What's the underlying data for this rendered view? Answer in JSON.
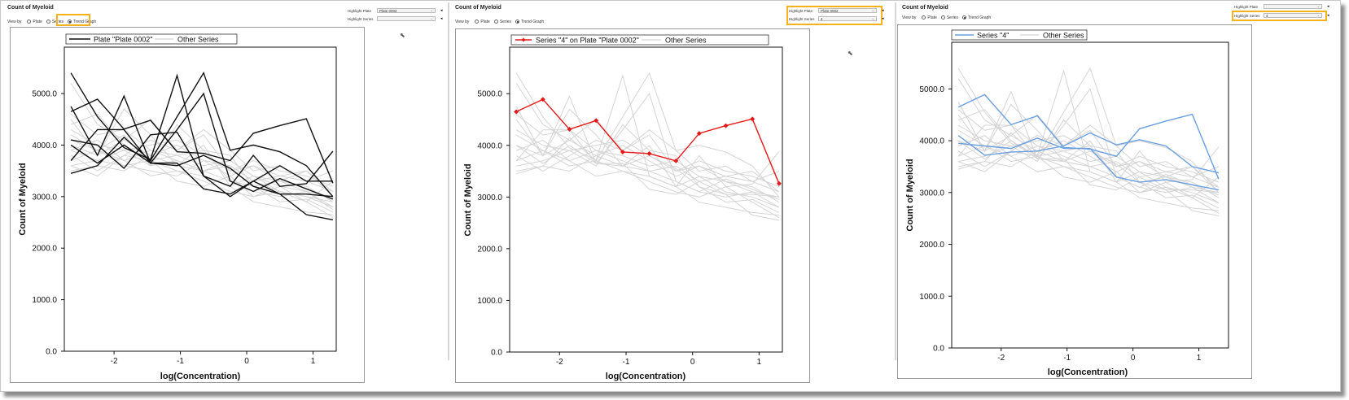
{
  "panels": [
    {
      "title": "Count of Myeloid",
      "view_by": {
        "label": "View by",
        "options": [
          "Plate",
          "Series",
          "Trend Graph"
        ],
        "selected": "Trend Graph"
      },
      "highlight_plate": {
        "label": "Highlight Plate",
        "value": "Plate 0002"
      },
      "highlight_series": {
        "label": "Highlight Series",
        "value": ""
      },
      "chart": {
        "legend_main": "Plate \"Plate 0002\"",
        "legend_other": "Other Series",
        "ylabel": "Count of Myeloid",
        "xlabel": "log(Concentration)",
        "yticks": [
          "0.0",
          "1000.0",
          "2000.0",
          "3000.0",
          "4000.0",
          "5000.0"
        ],
        "xticks": [
          "-2",
          "-1",
          "0",
          "1"
        ]
      }
    },
    {
      "title": "Count of Myeloid",
      "view_by": {
        "label": "View by",
        "options": [
          "Plate",
          "Series",
          "Trend Graph"
        ],
        "selected": "Trend Graph"
      },
      "highlight_plate": {
        "label": "Highlight Plate",
        "value": "Plate 0002"
      },
      "highlight_series": {
        "label": "Highlight Series",
        "value": "4"
      },
      "chart": {
        "legend_main": "Series \"4\" on Plate \"Plate 0002\"",
        "legend_other": "Other Series",
        "ylabel": "Count of Myeloid",
        "xlabel": "log(Concentration)",
        "yticks": [
          "0.0",
          "1000.0",
          "2000.0",
          "3000.0",
          "4000.0",
          "5000.0"
        ],
        "xticks": [
          "-2",
          "-1",
          "0",
          "1"
        ]
      }
    },
    {
      "title": "Count of Myeloid",
      "view_by": {
        "label": "View by",
        "options": [
          "Plate",
          "Series",
          "Trend Graph"
        ],
        "selected": "Trend Graph"
      },
      "highlight_plate": {
        "label": "Highlight Plate",
        "value": ""
      },
      "highlight_series": {
        "label": "Highlight Series",
        "value": "4"
      },
      "chart": {
        "legend_main": "Series \"4\"",
        "legend_other": "Other Series",
        "ylabel": "Count of Myeloid",
        "xlabel": "log(Concentration)",
        "yticks": [
          "0.0",
          "1000.0",
          "2000.0",
          "3000.0",
          "4000.0",
          "5000.0"
        ],
        "xticks": [
          "-2",
          "-1",
          "0",
          "1"
        ]
      }
    }
  ],
  "colors": {
    "highlight_plate": "#111111",
    "highlight_series": "#e41a1a",
    "highlight_series_all": "#6a9fe0",
    "other_series": "#d4d4d4",
    "focus_box": "#f5b21b"
  },
  "chart_data": [
    {
      "type": "line",
      "title": "",
      "xlabel": "log(Concentration)",
      "ylabel": "Count of Myeloid",
      "xlim": [
        -2.75,
        1.35
      ],
      "ylim": [
        0,
        5900
      ],
      "x": [
        -2.65,
        -2.25,
        -1.85,
        -1.45,
        -1.05,
        -0.65,
        -0.25,
        0.1,
        0.5,
        0.9,
        1.3
      ],
      "highlight_series": [
        {
          "name": "Plate \"Plate 0002\"",
          "values": [
            4650,
            4890,
            4310,
            4480,
            3870,
            3840,
            3700,
            4230,
            4380,
            4510,
            3260
          ]
        },
        {
          "name": "Plate \"Plate 0002\"",
          "values": [
            5400,
            4550,
            3950,
            3720,
            5350,
            3400,
            3200,
            3800,
            3200,
            3250,
            3880
          ]
        },
        {
          "name": "Plate \"Plate 0002\"",
          "values": [
            3450,
            3600,
            4150,
            3700,
            4550,
            5400,
            3900,
            4000,
            3870,
            3600,
            3000
          ]
        },
        {
          "name": "Plate \"Plate 0002\"",
          "values": [
            4000,
            3650,
            4000,
            3650,
            3650,
            3150,
            3050,
            3300,
            3050,
            2650,
            2550
          ]
        },
        {
          "name": "Plate \"Plate 0002\"",
          "values": [
            4750,
            3800,
            4950,
            3650,
            4300,
            5000,
            3300,
            3100,
            3350,
            3150,
            2950
          ]
        },
        {
          "name": "Plate \"Plate 0002\"",
          "values": [
            3700,
            4300,
            4300,
            3650,
            3600,
            3800,
            3550,
            3200,
            3050,
            3050,
            3000
          ]
        },
        {
          "name": "Plate \"Plate 0002\"",
          "values": [
            4100,
            4000,
            3550,
            4200,
            4250,
            3400,
            3000,
            3300,
            3600,
            3300,
            3300
          ]
        }
      ],
      "other_series": [
        [
          4500,
          3800,
          4700,
          4200,
          3600,
          4000,
          3200,
          3400,
          3100,
          3000,
          2800
        ],
        [
          3900,
          4100,
          3700,
          3900,
          3700,
          3500,
          3600,
          3300,
          3400,
          3500,
          3100
        ],
        [
          5200,
          4400,
          4100,
          3800,
          4000,
          3700,
          3400,
          3600,
          3300,
          3100,
          3000
        ],
        [
          3600,
          3700,
          3900,
          3600,
          4400,
          3900,
          3800,
          3200,
          2900,
          2950,
          2700
        ],
        [
          4200,
          3900,
          3600,
          3700,
          3500,
          3300,
          3100,
          3000,
          3200,
          2900,
          2600
        ],
        [
          3800,
          3500,
          3800,
          4100,
          3900,
          4200,
          3500,
          3700,
          3500,
          3400,
          3200
        ],
        [
          4600,
          4200,
          4300,
          3900,
          3800,
          3600,
          3700,
          3400,
          3300,
          3200,
          2900
        ],
        [
          3500,
          3600,
          3500,
          3800,
          3600,
          3500,
          3300,
          3100,
          3000,
          3100,
          2800
        ],
        [
          4000,
          3800,
          4100,
          4500,
          3900,
          4300,
          3900,
          3500,
          3600,
          3300,
          3100
        ],
        [
          3700,
          3900,
          3700,
          3400,
          3500,
          3400,
          3200,
          2900,
          2800,
          2700,
          2650
        ],
        [
          4300,
          4000,
          3900,
          4000,
          4100,
          3800,
          3500,
          3600,
          3400,
          3300,
          3500
        ],
        [
          3900,
          3700,
          3600,
          3500,
          3400,
          3700,
          3600,
          3300,
          3100,
          3000,
          2900
        ],
        [
          4400,
          4600,
          4000,
          3700,
          3800,
          3900,
          3300,
          3200,
          3300,
          3500,
          3000
        ],
        [
          3600,
          3400,
          3800,
          3700,
          3300,
          3200,
          3400,
          3000,
          3100,
          2900,
          3300
        ],
        [
          4100,
          3900,
          4200,
          3600,
          3700,
          3500,
          3700,
          3400,
          3200,
          3100,
          2750
        ]
      ]
    },
    {
      "type": "line",
      "title": "",
      "xlabel": "log(Concentration)",
      "ylabel": "Count of Myeloid",
      "xlim": [
        -2.75,
        1.35
      ],
      "ylim": [
        0,
        5900
      ],
      "x": [
        -2.65,
        -2.25,
        -1.85,
        -1.45,
        -1.05,
        -0.65,
        -0.25,
        0.1,
        0.5,
        0.9,
        1.3
      ],
      "highlight_series": [
        {
          "name": "Series \"4\" on Plate \"Plate 0002\"",
          "values": [
            4650,
            4890,
            4310,
            4480,
            3870,
            3840,
            3700,
            4230,
            4380,
            4510,
            3260
          ],
          "markers": true
        }
      ],
      "other_series": [
        [
          5400,
          4550,
          3950,
          3720,
          5350,
          3400,
          3200,
          3800,
          3200,
          3250,
          3880
        ],
        [
          3450,
          3600,
          4150,
          3700,
          4550,
          5400,
          3900,
          4000,
          3870,
          3600,
          3000
        ],
        [
          4000,
          3650,
          4000,
          3650,
          3650,
          3150,
          3050,
          3300,
          3050,
          2650,
          2550
        ],
        [
          4750,
          3800,
          4950,
          3650,
          4300,
          5000,
          3300,
          3100,
          3350,
          3150,
          2950
        ],
        [
          3700,
          4300,
          4300,
          3650,
          3600,
          3800,
          3550,
          3200,
          3050,
          3050,
          3000
        ],
        [
          4500,
          3800,
          4700,
          4200,
          3600,
          4000,
          3200,
          3400,
          3100,
          3000,
          2800
        ],
        [
          3900,
          4100,
          3700,
          3900,
          3700,
          3500,
          3600,
          3300,
          3400,
          3500,
          3100
        ],
        [
          5200,
          4400,
          4100,
          3800,
          4000,
          3700,
          3400,
          3600,
          3300,
          3100,
          3000
        ],
        [
          3600,
          3700,
          3900,
          3600,
          4400,
          3900,
          3800,
          3200,
          2900,
          2950,
          2700
        ],
        [
          4200,
          3900,
          3600,
          3700,
          3500,
          3300,
          3100,
          3000,
          3200,
          2900,
          2600
        ],
        [
          3800,
          3500,
          3800,
          4100,
          3900,
          4200,
          3500,
          3700,
          3500,
          3400,
          3200
        ],
        [
          4600,
          4200,
          4300,
          3900,
          3800,
          3600,
          3700,
          3400,
          3300,
          3200,
          2900
        ],
        [
          3500,
          3600,
          3500,
          3800,
          3600,
          3500,
          3300,
          3100,
          3000,
          3100,
          2800
        ],
        [
          4000,
          3800,
          4100,
          4500,
          3900,
          4300,
          3900,
          3500,
          3600,
          3300,
          3100
        ],
        [
          3700,
          3900,
          3700,
          3400,
          3500,
          3400,
          3200,
          2900,
          2800,
          2700,
          2650
        ],
        [
          4300,
          4000,
          3900,
          4000,
          4100,
          3800,
          3500,
          3600,
          3400,
          3300,
          3500
        ]
      ]
    },
    {
      "type": "line",
      "title": "",
      "xlabel": "log(Concentration)",
      "ylabel": "Count of Myeloid",
      "xlim": [
        -2.75,
        1.45
      ],
      "ylim": [
        0,
        5900
      ],
      "x": [
        -2.65,
        -2.25,
        -1.85,
        -1.45,
        -1.05,
        -0.65,
        -0.25,
        0.1,
        0.5,
        0.9,
        1.3
      ],
      "highlight_series": [
        {
          "name": "Series \"4\"",
          "values": [
            4650,
            4890,
            4310,
            4480,
            3870,
            3840,
            3700,
            4230,
            4380,
            4510,
            3260
          ]
        },
        {
          "name": "Series \"4\"",
          "values": [
            4100,
            3720,
            3780,
            3800,
            3900,
            4150,
            3920,
            4020,
            3900,
            3500,
            3380
          ]
        },
        {
          "name": "Series \"4\"",
          "values": [
            3950,
            3900,
            3850,
            4050,
            3850,
            3850,
            3300,
            3200,
            3250,
            3150,
            3050
          ]
        }
      ],
      "other_series": [
        [
          5400,
          4550,
          3950,
          3720,
          5350,
          3400,
          3200,
          3800,
          3200,
          3250,
          3880
        ],
        [
          3450,
          3600,
          4150,
          3700,
          4550,
          5400,
          3900,
          4000,
          3870,
          3600,
          3000
        ],
        [
          4000,
          3650,
          4000,
          3650,
          3650,
          3150,
          3050,
          3300,
          3050,
          2650,
          2550
        ],
        [
          4750,
          3800,
          4950,
          3650,
          4300,
          5000,
          3300,
          3100,
          3350,
          3150,
          2950
        ],
        [
          3700,
          4300,
          4300,
          3650,
          3600,
          3800,
          3550,
          3200,
          3050,
          3050,
          3000
        ],
        [
          4500,
          3800,
          4700,
          4200,
          3600,
          4000,
          3200,
          3400,
          3100,
          3000,
          2800
        ],
        [
          3900,
          4100,
          3700,
          3900,
          3700,
          3500,
          3600,
          3300,
          3400,
          3500,
          3100
        ],
        [
          5200,
          4400,
          4100,
          3800,
          4000,
          3700,
          3400,
          3600,
          3300,
          3100,
          3000
        ],
        [
          3600,
          3700,
          3900,
          3600,
          4400,
          3900,
          3800,
          3200,
          2900,
          2950,
          2700
        ],
        [
          4200,
          3900,
          3600,
          3700,
          3500,
          3300,
          3100,
          3000,
          3200,
          2900,
          2600
        ],
        [
          3800,
          3500,
          3800,
          4100,
          3900,
          4200,
          3500,
          3700,
          3500,
          3400,
          3200
        ],
        [
          4600,
          4200,
          4300,
          3900,
          3800,
          3600,
          3700,
          3400,
          3300,
          3200,
          2900
        ],
        [
          3500,
          3600,
          3500,
          3800,
          3600,
          3500,
          3300,
          3100,
          3000,
          3100,
          2800
        ],
        [
          4000,
          3800,
          4100,
          4500,
          3900,
          4300,
          3900,
          3500,
          3600,
          3300,
          3100
        ],
        [
          3700,
          3900,
          3700,
          3400,
          3500,
          3400,
          3200,
          2900,
          2800,
          2700,
          2650
        ],
        [
          4300,
          4000,
          3900,
          4000,
          4100,
          3800,
          3500,
          3600,
          3400,
          3300,
          3500
        ],
        [
          4400,
          4600,
          4000,
          3700,
          3800,
          3900,
          3300,
          3200,
          3300,
          3500,
          3000
        ],
        [
          3600,
          3400,
          3800,
          3700,
          3300,
          3200,
          3400,
          3000,
          3100,
          2900,
          3300
        ]
      ]
    }
  ]
}
